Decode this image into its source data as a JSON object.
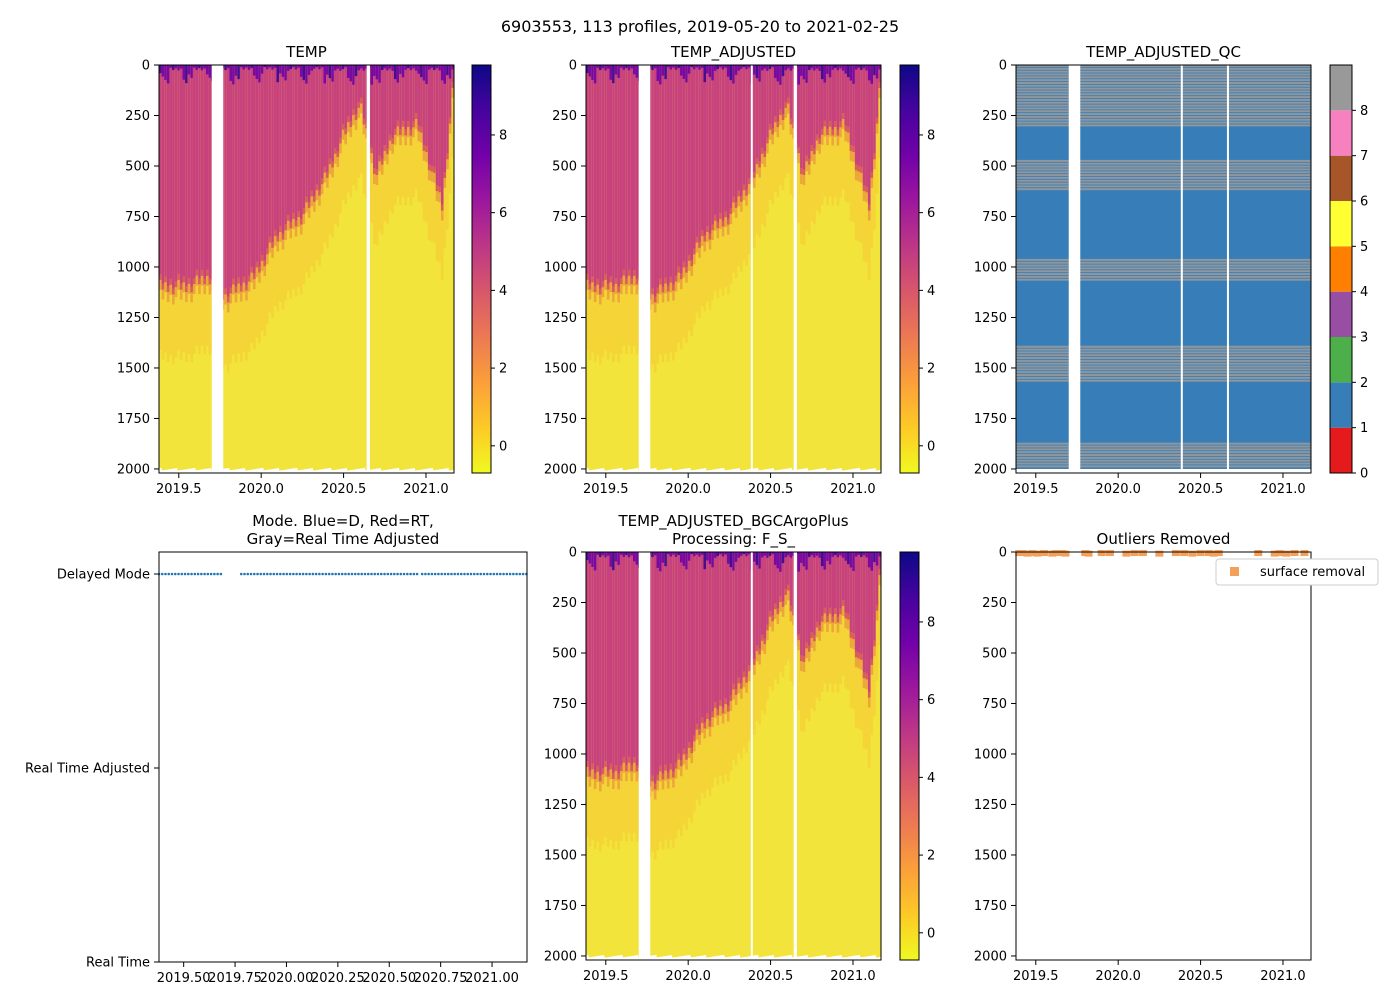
{
  "suptitle": "6903553, 113 profiles, 2019-05-20 to 2021-02-25",
  "colors": {
    "plasma": [
      "#0d0887",
      "#46039f",
      "#7201a8",
      "#9c179e",
      "#bd3786",
      "#d8576b",
      "#ed7953",
      "#fb9f3a",
      "#fdca26",
      "#f0f921"
    ],
    "qc": [
      "#e41a1c",
      "#377eb8",
      "#4daf4a",
      "#984ea3",
      "#ff7f00",
      "#ffff33",
      "#a65628",
      "#f781bf",
      "#999999"
    ],
    "mode_dot": "#1f77b4",
    "outlier": "#f5a05a"
  },
  "chart_data": [
    {
      "id": "temp",
      "type": "heatmap",
      "title": "TEMP",
      "x_ticks": [
        "2019.5",
        "2020.0",
        "2020.5",
        "2021.0"
      ],
      "x_tick_values": [
        2019.5,
        2020.0,
        2020.5,
        2021.0
      ],
      "xlim": [
        2019.38,
        2021.17
      ],
      "ylim": [
        2020,
        0
      ],
      "y_ticks": [
        "0",
        "250",
        "500",
        "750",
        "1000",
        "1250",
        "1500",
        "1750",
        "2000"
      ],
      "colorbar": {
        "ticks": [
          "8",
          "6",
          "4",
          "2",
          "0"
        ],
        "tick_values": [
          8,
          6,
          4,
          2,
          0
        ],
        "vmin": -0.7,
        "vmax": 9.8
      },
      "gaps": [
        [
          2019.7,
          2019.77
        ],
        [
          2020.64,
          2020.66
        ]
      ],
      "depth_profile": [
        [
          2019.38,
          1100
        ],
        [
          2019.55,
          1100
        ],
        [
          2019.69,
          1050
        ],
        [
          2019.78,
          1150
        ],
        [
          2019.95,
          1060
        ],
        [
          2020.1,
          850
        ],
        [
          2020.25,
          750
        ],
        [
          2020.4,
          550
        ],
        [
          2020.5,
          350
        ],
        [
          2020.6,
          200
        ],
        [
          2020.7,
          550
        ],
        [
          2020.8,
          350
        ],
        [
          2020.95,
          300
        ],
        [
          2021.1,
          700
        ],
        [
          2021.17,
          80
        ]
      ]
    },
    {
      "id": "temp_adjusted",
      "type": "heatmap",
      "title": "TEMP_ADJUSTED",
      "x_ticks": [
        "2019.5",
        "2020.0",
        "2020.5",
        "2021.0"
      ],
      "x_tick_values": [
        2019.5,
        2020.0,
        2020.5,
        2021.0
      ],
      "xlim": [
        2019.38,
        2021.17
      ],
      "ylim": [
        2020,
        0
      ],
      "y_ticks": [
        "0",
        "250",
        "500",
        "750",
        "1000",
        "1250",
        "1500",
        "1750",
        "2000"
      ],
      "colorbar": {
        "ticks": [
          "8",
          "6",
          "4",
          "2",
          "0"
        ],
        "tick_values": [
          8,
          6,
          4,
          2,
          0
        ],
        "vmin": -0.7,
        "vmax": 9.8
      },
      "gaps": [
        [
          2019.7,
          2019.77
        ],
        [
          2020.38,
          2020.385
        ],
        [
          2020.64,
          2020.66
        ]
      ],
      "depth_profile": [
        [
          2019.38,
          1100
        ],
        [
          2019.55,
          1100
        ],
        [
          2019.69,
          1050
        ],
        [
          2019.78,
          1150
        ],
        [
          2019.95,
          1060
        ],
        [
          2020.1,
          850
        ],
        [
          2020.25,
          750
        ],
        [
          2020.4,
          550
        ],
        [
          2020.5,
          350
        ],
        [
          2020.6,
          200
        ],
        [
          2020.7,
          550
        ],
        [
          2020.8,
          350
        ],
        [
          2020.95,
          300
        ],
        [
          2021.1,
          700
        ],
        [
          2021.17,
          80
        ]
      ]
    },
    {
      "id": "temp_adjusted_qc",
      "type": "heatmap",
      "title": "TEMP_ADJUSTED_QC",
      "x_ticks": [
        "2019.5",
        "2020.0",
        "2020.5",
        "2021.0"
      ],
      "x_tick_values": [
        2019.5,
        2020.0,
        2020.5,
        2021.0
      ],
      "xlim": [
        2019.38,
        2021.17
      ],
      "ylim": [
        2020,
        0
      ],
      "y_ticks": [
        "0",
        "250",
        "500",
        "750",
        "1000",
        "1250",
        "1500",
        "1750",
        "2000"
      ],
      "colorbar": {
        "ticks": [
          "8",
          "7",
          "6",
          "5",
          "4",
          "3",
          "2",
          "1",
          "0"
        ],
        "tick_values": [
          8,
          7,
          6,
          5,
          4,
          3,
          2,
          1,
          0
        ],
        "vmin": 0,
        "vmax": 9
      },
      "gaps": [
        [
          2019.7,
          2019.77
        ],
        [
          2020.38,
          2020.385
        ],
        [
          2020.66,
          2020.665
        ]
      ],
      "gray_bands": [
        [
          0,
          300
        ],
        [
          470,
          620
        ],
        [
          960,
          1060
        ],
        [
          1390,
          1560
        ],
        [
          1870,
          1990
        ]
      ]
    },
    {
      "id": "mode",
      "type": "scatter",
      "title_lines": [
        "Mode. Blue=D, Red=RT,",
        "Gray=Real Time Adjusted"
      ],
      "y_categories": [
        "Delayed Mode",
        "Real Time Adjusted",
        "Real Time"
      ],
      "x_ticks": [
        "2019.50",
        "2019.75",
        "2020.00",
        "2020.25",
        "2020.50",
        "2020.75",
        "2021.00"
      ],
      "x_tick_values": [
        2019.5,
        2019.75,
        2020.0,
        2020.25,
        2020.5,
        2020.75,
        2021.0
      ],
      "xlim": [
        2019.38,
        2021.17
      ],
      "series": [
        {
          "name": "Delayed Mode",
          "x_ranges": [
            [
              2019.38,
              2019.69
            ],
            [
              2019.78,
              2020.64
            ],
            [
              2020.66,
              2021.17
            ]
          ],
          "count": 113
        }
      ]
    },
    {
      "id": "temp_bgc",
      "type": "heatmap",
      "title_lines": [
        "TEMP_ADJUSTED_BGCArgoPlus",
        "Processing: F_S_"
      ],
      "x_ticks": [
        "2019.5",
        "2020.0",
        "2020.5",
        "2021.0"
      ],
      "x_tick_values": [
        2019.5,
        2020.0,
        2020.5,
        2021.0
      ],
      "xlim": [
        2019.38,
        2021.17
      ],
      "ylim": [
        2020,
        0
      ],
      "y_ticks": [
        "0",
        "250",
        "500",
        "750",
        "1000",
        "1250",
        "1500",
        "1750",
        "2000"
      ],
      "colorbar": {
        "ticks": [
          "8",
          "6",
          "4",
          "2",
          "0"
        ],
        "tick_values": [
          8,
          6,
          4,
          2,
          0
        ],
        "vmin": -0.7,
        "vmax": 9.8
      },
      "gaps": [
        [
          2019.7,
          2019.77
        ],
        [
          2020.38,
          2020.385
        ],
        [
          2020.64,
          2020.66
        ]
      ],
      "depth_profile": [
        [
          2019.38,
          1100
        ],
        [
          2019.55,
          1100
        ],
        [
          2019.69,
          1050
        ],
        [
          2019.78,
          1150
        ],
        [
          2019.95,
          1060
        ],
        [
          2020.1,
          850
        ],
        [
          2020.25,
          750
        ],
        [
          2020.4,
          550
        ],
        [
          2020.5,
          350
        ],
        [
          2020.6,
          200
        ],
        [
          2020.7,
          550
        ],
        [
          2020.8,
          350
        ],
        [
          2020.95,
          300
        ],
        [
          2021.1,
          700
        ],
        [
          2021.17,
          80
        ]
      ]
    },
    {
      "id": "outliers",
      "type": "scatter",
      "title": "Outliers Removed",
      "x_ticks": [
        "2019.5",
        "2020.0",
        "2020.5",
        "2021.0"
      ],
      "x_tick_values": [
        2019.5,
        2020.0,
        2020.5,
        2021.0
      ],
      "xlim": [
        2019.38,
        2021.17
      ],
      "ylim": [
        2020,
        0
      ],
      "y_ticks": [
        "0",
        "250",
        "500",
        "750",
        "1000",
        "1250",
        "1500",
        "1750",
        "2000"
      ],
      "legend": "surface removal",
      "series": [
        {
          "name": "surface removal",
          "x": [
            2019.4,
            2019.42,
            2019.45,
            2019.48,
            2019.51,
            2019.55,
            2019.6,
            2019.62,
            2019.66,
            2019.68,
            2019.8,
            2019.82,
            2019.9,
            2019.95,
            2020.05,
            2020.1,
            2020.15,
            2020.25,
            2020.35,
            2020.4,
            2020.45,
            2020.5,
            2020.55,
            2020.58,
            2020.61,
            2020.85,
            2020.95,
            2020.98,
            2021.02,
            2021.07,
            2021.13
          ],
          "y": [
            5,
            5,
            8,
            5,
            8,
            5,
            8,
            5,
            5,
            8,
            5,
            8,
            5,
            5,
            8,
            5,
            5,
            8,
            5,
            5,
            8,
            5,
            5,
            8,
            5,
            5,
            8,
            5,
            8,
            5,
            5
          ]
        }
      ]
    }
  ]
}
